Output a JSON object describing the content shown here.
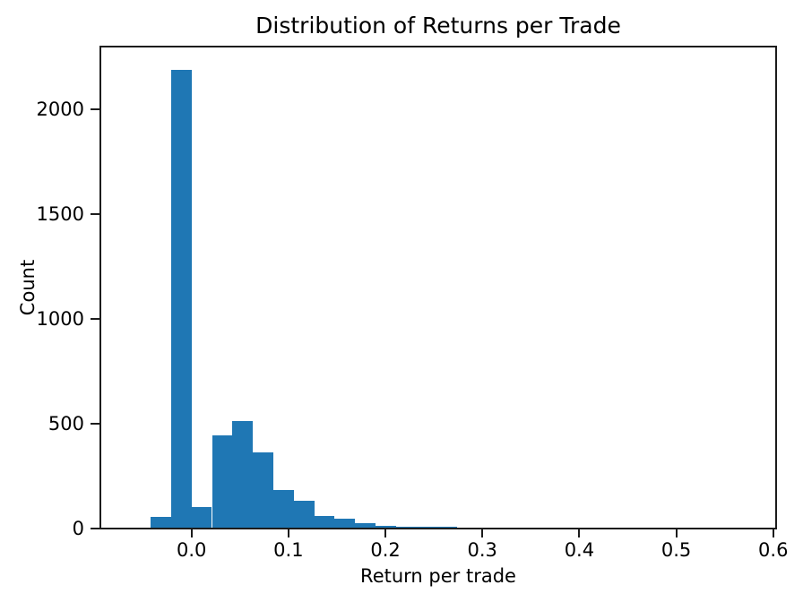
{
  "chart_data": {
    "type": "bar",
    "subtype": "histogram",
    "title": "Distribution of Returns per Trade",
    "xlabel": "Return per trade",
    "ylabel": "Count",
    "bar_color": "#1f77b4",
    "axis_color": "#1c1c1c",
    "background_color": "#ffffff",
    "grid": false,
    "legend": null,
    "bin_start": -0.0422,
    "bin_width": 0.0211,
    "counts": [
      55,
      2185,
      102,
      445,
      512,
      362,
      182,
      131,
      60,
      46,
      25,
      14,
      6,
      5,
      4
    ],
    "xlim": [
      -0.094,
      0.603
    ],
    "ylim": [
      0,
      2297
    ],
    "xticks": {
      "values": [
        0.0,
        0.1,
        0.2,
        0.3,
        0.4,
        0.5,
        0.6
      ],
      "labels": [
        "0.0",
        "0.1",
        "0.2",
        "0.3",
        "0.4",
        "0.5",
        "0.6"
      ]
    },
    "yticks": {
      "values": [
        0,
        500,
        1000,
        1500,
        2000
      ],
      "labels": [
        "0",
        "500",
        "1000",
        "1500",
        "2000"
      ]
    }
  }
}
